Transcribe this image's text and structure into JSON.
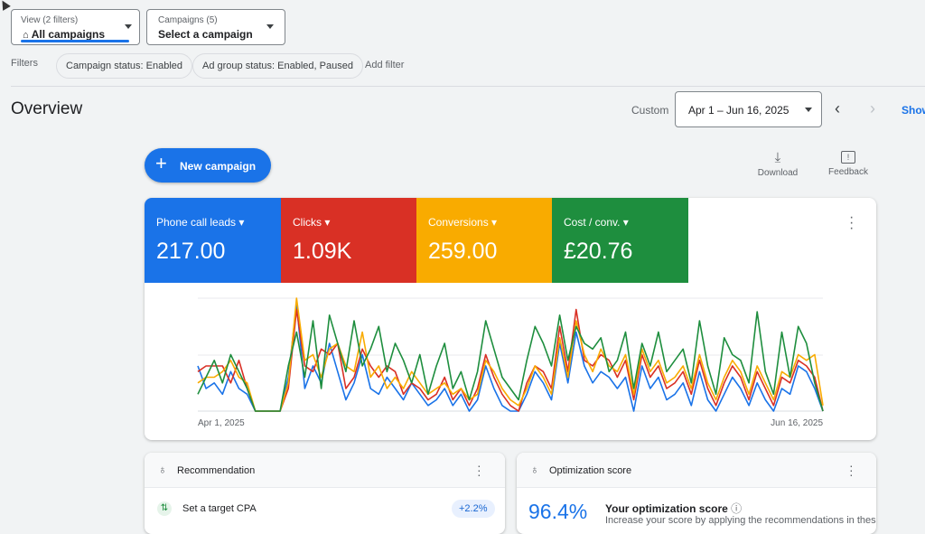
{
  "header": {
    "view_label": "View (2 filters)",
    "view_value": "All campaigns",
    "campaigns_label": "Campaigns (5)",
    "campaigns_value": "Select a campaign"
  },
  "filters": {
    "label": "Filters",
    "chips": [
      "Campaign status: Enabled",
      "Ad group status: Enabled, Paused"
    ],
    "add": "Add filter"
  },
  "overview": {
    "title": "Overview",
    "custom": "Custom",
    "date_range": "Apr 1 – Jun 16, 2025",
    "show": "Show"
  },
  "actions": {
    "new_campaign": "New campaign",
    "download": "Download",
    "feedback": "Feedback"
  },
  "metrics": [
    {
      "name": "Phone call leads",
      "value": "217.00"
    },
    {
      "name": "Clicks",
      "value": "1.09K"
    },
    {
      "name": "Conversions",
      "value": "259.00"
    },
    {
      "name": "Cost / conv.",
      "value": "£20.76"
    }
  ],
  "chart_data": {
    "type": "line",
    "ylim": [
      0,
      100
    ],
    "categories": [
      "Apr 1, 2025",
      null,
      null,
      null,
      null,
      null,
      null,
      null,
      null,
      null,
      null,
      null,
      null,
      null,
      null,
      null,
      null,
      null,
      null,
      null,
      null,
      null,
      null,
      null,
      null,
      null,
      null,
      null,
      null,
      null,
      null,
      null,
      null,
      null,
      null,
      null,
      null,
      null,
      null,
      null,
      null,
      null,
      null,
      null,
      null,
      null,
      null,
      null,
      null,
      null,
      null,
      null,
      null,
      null,
      null,
      null,
      null,
      null,
      null,
      null,
      null,
      null,
      null,
      null,
      null,
      null,
      null,
      null,
      null,
      null,
      null,
      null,
      null,
      null,
      null,
      null,
      "Jun 16, 2025"
    ],
    "series": [
      {
        "name": "Phone call leads",
        "color": "#1a73e8",
        "values": [
          40,
          20,
          25,
          15,
          35,
          20,
          15,
          0,
          0,
          0,
          0,
          30,
          95,
          20,
          40,
          25,
          60,
          35,
          10,
          25,
          50,
          20,
          15,
          30,
          20,
          10,
          25,
          15,
          5,
          10,
          20,
          5,
          15,
          0,
          10,
          40,
          20,
          5,
          0,
          0,
          15,
          35,
          25,
          10,
          60,
          25,
          70,
          40,
          25,
          35,
          30,
          20,
          30,
          0,
          40,
          20,
          30,
          10,
          15,
          25,
          5,
          35,
          10,
          0,
          15,
          30,
          20,
          5,
          25,
          10,
          0,
          20,
          15,
          40,
          35,
          20,
          0
        ]
      },
      {
        "name": "Clicks",
        "color": "#d93025",
        "values": [
          35,
          40,
          40,
          40,
          25,
          45,
          20,
          0,
          0,
          0,
          0,
          20,
          90,
          40,
          35,
          55,
          50,
          60,
          20,
          30,
          55,
          40,
          30,
          40,
          35,
          15,
          25,
          20,
          10,
          15,
          30,
          10,
          20,
          5,
          20,
          50,
          30,
          15,
          5,
          0,
          25,
          40,
          35,
          20,
          75,
          35,
          90,
          45,
          40,
          50,
          45,
          30,
          45,
          10,
          50,
          30,
          40,
          20,
          25,
          35,
          15,
          45,
          20,
          5,
          25,
          40,
          30,
          10,
          35,
          20,
          5,
          30,
          25,
          45,
          40,
          30,
          0
        ]
      },
      {
        "name": "Conversions",
        "color": "#f9ab00",
        "values": [
          25,
          30,
          30,
          35,
          45,
          30,
          25,
          0,
          0,
          0,
          0,
          25,
          100,
          45,
          50,
          30,
          55,
          60,
          40,
          35,
          70,
          30,
          40,
          20,
          30,
          20,
          35,
          25,
          15,
          20,
          25,
          15,
          20,
          10,
          15,
          45,
          35,
          20,
          10,
          5,
          20,
          40,
          30,
          15,
          65,
          30,
          80,
          50,
          35,
          55,
          40,
          35,
          50,
          15,
          55,
          35,
          45,
          25,
          30,
          40,
          20,
          50,
          25,
          10,
          30,
          45,
          35,
          15,
          40,
          25,
          10,
          35,
          30,
          50,
          45,
          50,
          5
        ]
      },
      {
        "name": "Cost / conv.",
        "color": "#1e8e3e",
        "values": [
          15,
          30,
          45,
          25,
          50,
          35,
          20,
          0,
          0,
          0,
          0,
          40,
          70,
          30,
          80,
          20,
          85,
          60,
          35,
          80,
          40,
          55,
          75,
          35,
          60,
          45,
          25,
          50,
          15,
          40,
          60,
          20,
          35,
          10,
          35,
          80,
          55,
          30,
          20,
          10,
          45,
          75,
          60,
          40,
          85,
          45,
          75,
          60,
          55,
          65,
          35,
          45,
          70,
          20,
          60,
          40,
          70,
          35,
          45,
          55,
          25,
          80,
          40,
          15,
          65,
          50,
          45,
          25,
          88,
          35,
          15,
          70,
          30,
          75,
          60,
          25,
          0
        ]
      }
    ]
  },
  "recommendation": {
    "title": "Recommendation",
    "item": "Set a target CPA",
    "badge": "+2.2%"
  },
  "optimization": {
    "title": "Optimization score",
    "score": "96.4%",
    "heading": "Your optimization score",
    "text": "Increase your score by applying the recommendations in these"
  }
}
